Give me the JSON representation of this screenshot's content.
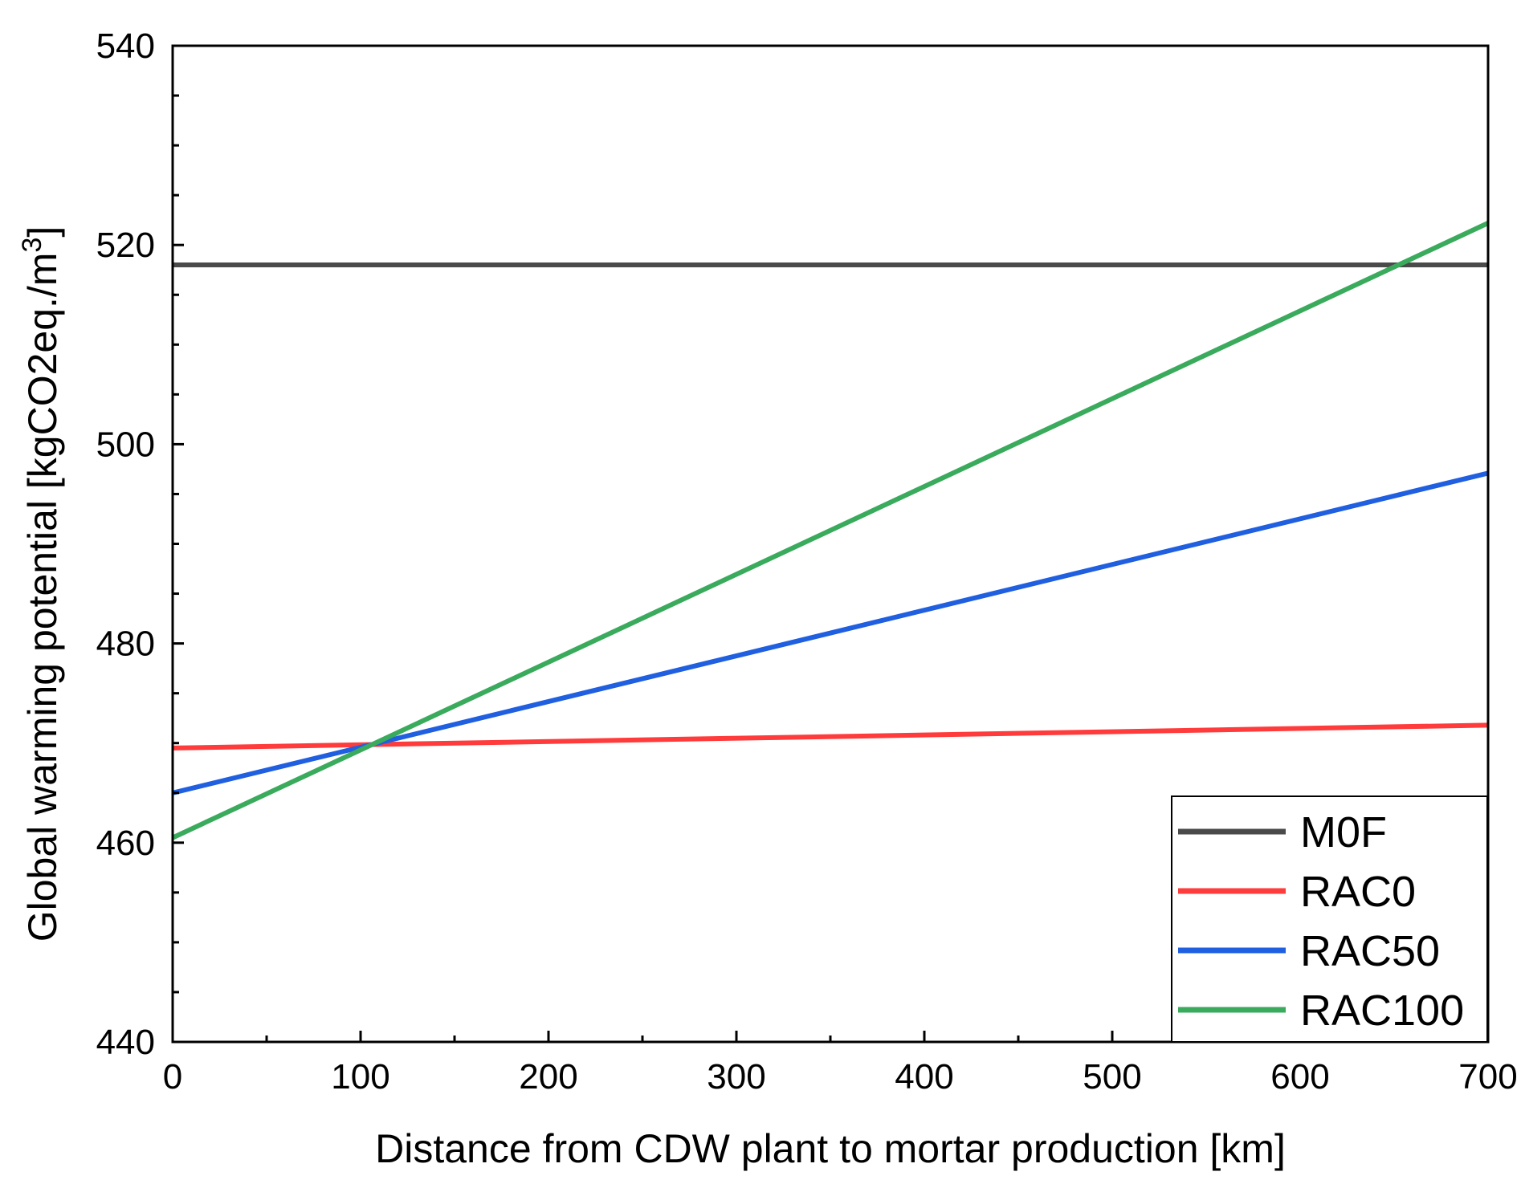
{
  "chart_data": {
    "type": "line",
    "title": "",
    "xlabel": "Distance from CDW plant to mortar production [km]",
    "ylabel_main": "Global warming potential [kgCO2eq./m",
    "ylabel_sup": "3",
    "ylabel_close": "]",
    "xlim": [
      0,
      700
    ],
    "ylim": [
      440,
      540
    ],
    "xticks": [
      0,
      100,
      200,
      300,
      400,
      500,
      600,
      700
    ],
    "xtick_labels": [
      "0",
      "100",
      "200",
      "300",
      "400",
      "500",
      "600",
      "700"
    ],
    "yticks": [
      440,
      460,
      480,
      500,
      520,
      540
    ],
    "ytick_labels": [
      "440",
      "460",
      "480",
      "500",
      "520",
      "540"
    ],
    "x_minor_step": 50,
    "y_minor_step": 5,
    "grid": false,
    "legend_position": "bottom-right",
    "series": [
      {
        "name": "M0F",
        "color": "#4a4a4a",
        "x": [
          0,
          700
        ],
        "y": [
          518.0,
          518.0
        ]
      },
      {
        "name": "RAC0",
        "color": "#ff3b3b",
        "x": [
          0,
          700
        ],
        "y": [
          469.5,
          471.8
        ]
      },
      {
        "name": "RAC50",
        "color": "#1f5fe0",
        "x": [
          0,
          700
        ],
        "y": [
          465.0,
          497.1
        ]
      },
      {
        "name": "RAC100",
        "color": "#3aaa5c",
        "x": [
          0,
          700
        ],
        "y": [
          460.5,
          522.2
        ]
      }
    ]
  }
}
